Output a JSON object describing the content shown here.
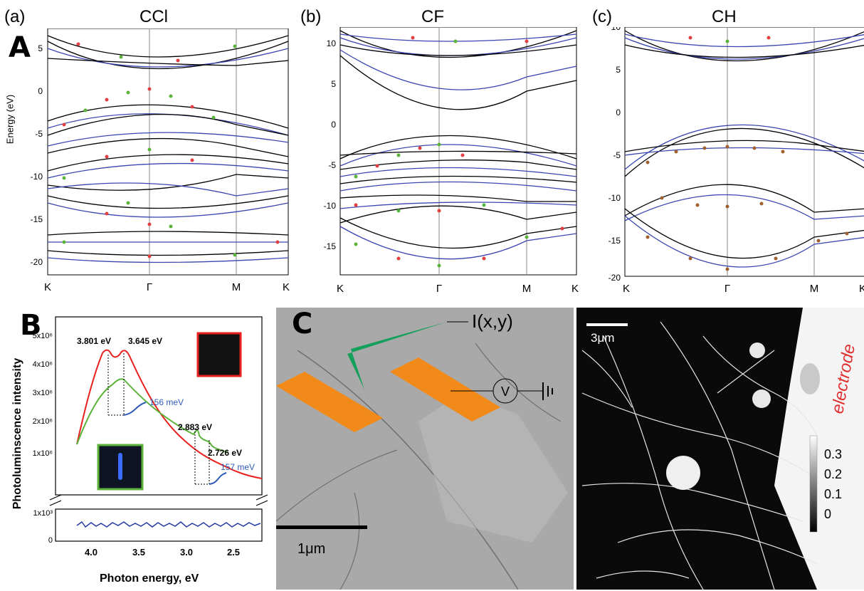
{
  "figure": {
    "label_A": "A",
    "label_B": "B",
    "label_C": "C"
  },
  "panel_a": {
    "tag": "(a)",
    "title": "CCl",
    "ylabel": "Energy (eV)",
    "yticks": [
      "5",
      "0",
      "-5",
      "-10",
      "-15",
      "-20"
    ],
    "xticks": [
      "K",
      "Γ",
      "M",
      "K"
    ]
  },
  "panel_b": {
    "tag": "(b)",
    "title": "CF",
    "yticks": [
      "10",
      "5",
      "0",
      "-5",
      "-10",
      "-15"
    ],
    "xticks": [
      "K",
      "Γ",
      "M",
      "K"
    ]
  },
  "panel_c": {
    "tag": "(c)",
    "title": "CH",
    "yticks": [
      "10",
      "5",
      "0",
      "-5",
      "-10",
      "-15",
      "-20"
    ],
    "xticks": [
      "K",
      "Γ",
      "M",
      "K"
    ]
  },
  "panel_B": {
    "ylabel": "Photoluminscence intensity",
    "xlabel": "Photon energy, eV",
    "yticks_upper": [
      "5x10⁶",
      "4x10⁶",
      "3x10⁶",
      "2x10⁶",
      "1x10⁶"
    ],
    "yticks_lower": [
      "1x10³",
      "0"
    ],
    "xticks": [
      "4.0",
      "3.5",
      "3.0",
      "2.5"
    ],
    "annotations": [
      "3.801 eV",
      "3.645 eV",
      "156 meV",
      "2.883 eV",
      "2.726 eV",
      "157 meV"
    ],
    "colors": {
      "red": "#e8201e",
      "green": "#5cb33a",
      "blue": "#2438a6",
      "annotation_blue": "#2e5bb8"
    }
  },
  "panel_C": {
    "current_label": "I(x,y)",
    "voltage_label": "V",
    "scale_left": "1μm",
    "scale_right": "3μm",
    "electrode_label": "electrode",
    "colorbar_ticks": [
      "0.3",
      "0.2",
      "0.1",
      "0"
    ]
  },
  "chart_data": [
    {
      "type": "line",
      "title": "CCl",
      "ylabel": "Energy (eV)",
      "categories": [
        "K",
        "Γ",
        "M",
        "K"
      ],
      "ylim": [
        -22.5,
        7.5
      ]
    },
    {
      "type": "line",
      "title": "CF",
      "categories": [
        "K",
        "Γ",
        "M",
        "K"
      ],
      "ylim": [
        -19,
        11.5
      ]
    },
    {
      "type": "line",
      "title": "CH",
      "categories": [
        "K",
        "Γ",
        "M",
        "K"
      ],
      "ylim": [
        -20,
        10
      ]
    },
    {
      "type": "line",
      "xlabel": "Photon energy, eV",
      "ylabel": "Photoluminscence intensity",
      "xlim": [
        4.25,
        2.2
      ],
      "series": [
        {
          "x": [
            4.15,
            4.0,
            3.9,
            3.801,
            3.72,
            3.645,
            3.55,
            3.4,
            3.2,
            3.0,
            2.883,
            2.8,
            2.726,
            2.6,
            2.4,
            2.2
          ],
          "values": [
            1000000,
            3000000,
            4000000,
            4500000,
            4300000,
            4400000,
            3900000,
            3000000,
            2200000,
            1500000,
            1200000,
            1050000,
            1000000,
            850000,
            650000,
            550000
          ]
        },
        {
          "x": [
            4.15,
            4.0,
            3.8,
            3.7,
            3.645,
            3.5,
            3.3,
            3.1,
            2.95,
            2.883,
            2.8,
            2.726,
            2.65
          ],
          "values": [
            1000000,
            2000000,
            2600000,
            2750000,
            2700000,
            2200000,
            1700000,
            1350000,
            1150000,
            1200000,
            1000000,
            950000,
            800000
          ]
        },
        {
          "x": [
            4.15,
            3.5,
            3.0,
            2.5,
            2.2
          ],
          "values": [
            400,
            350,
            380,
            360,
            370
          ]
        }
      ]
    }
  ]
}
